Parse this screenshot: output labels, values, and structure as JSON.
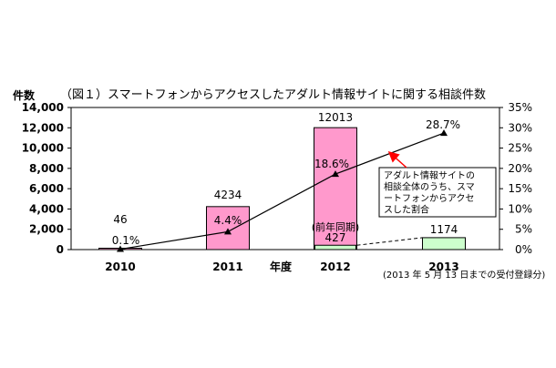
{
  "chart_data": {
    "type": "bar",
    "title": "（図１）スマートフォンからアクセスしたアダルト情報サイトに関する相談件数",
    "ylabel": "件数",
    "xlabel": "年度",
    "ylim": [
      0,
      14000
    ],
    "yticks": [
      "0",
      "2,000",
      "4,000",
      "6,000",
      "8,000",
      "10,000",
      "12,000",
      "14,000"
    ],
    "y2lim": [
      0,
      35
    ],
    "y2ticks": [
      "0%",
      "5%",
      "10%",
      "15%",
      "20%",
      "25%",
      "30%",
      "35%"
    ],
    "categories": [
      "2010",
      "2011",
      "2012",
      "2013"
    ],
    "series": [
      {
        "type": "bar",
        "values": [
          46,
          4234,
          12013,
          1174
        ],
        "value_labels": [
          "46",
          "4234",
          "12013",
          "1174"
        ],
        "colors": [
          "#ff99cc",
          "#ff99cc",
          "#ff99cc",
          "#ccffcc"
        ]
      },
      {
        "type": "line",
        "axis": "right",
        "values": [
          0.1,
          4.4,
          18.6,
          28.7
        ],
        "value_labels": [
          "0.1%",
          "4.4%",
          "18.6%",
          "28.7%"
        ],
        "color": "#000000"
      }
    ],
    "inset": {
      "category": "2012",
      "value": 427,
      "label": "427",
      "caption": "(前年同期)",
      "color": "#ccffcc"
    },
    "annotation": [
      "アダルト情報サイトの",
      "相談全体のうち、スマ",
      "ートフォンからアクセ",
      "スした割合"
    ],
    "footnote": "(2013 年 5 月 13 日までの受付登録分)",
    "grid": false
  }
}
